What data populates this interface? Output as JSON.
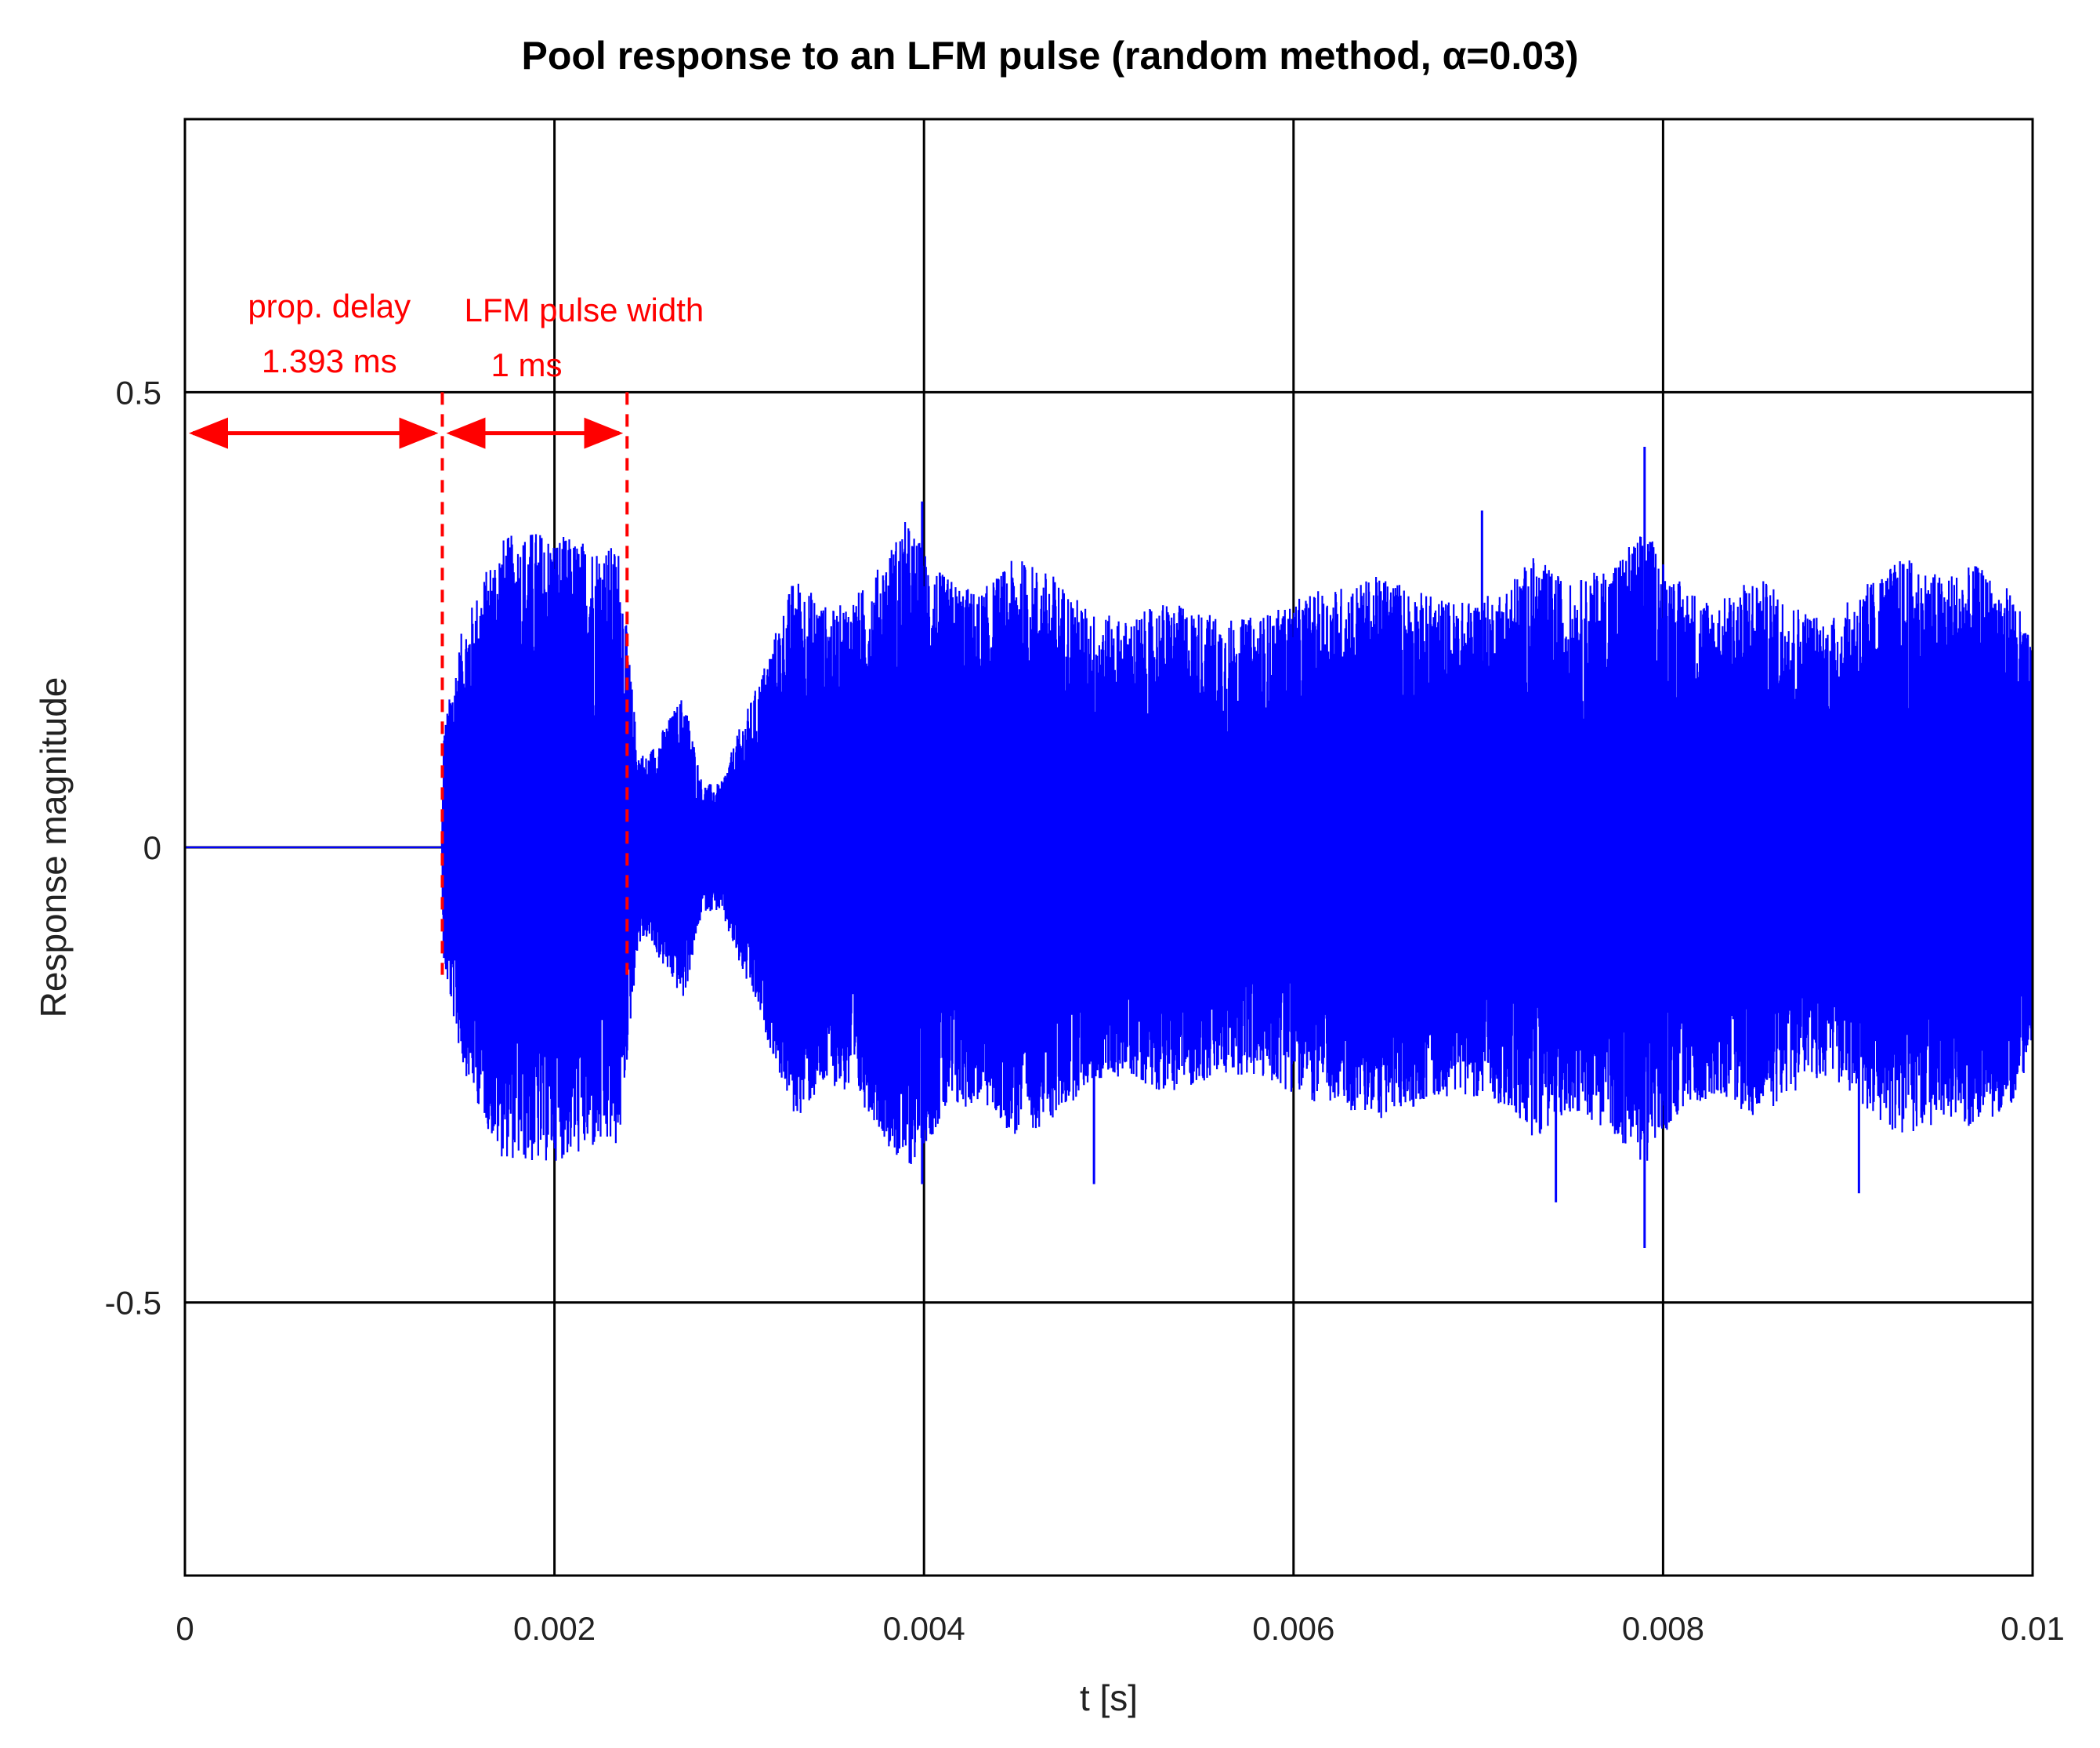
{
  "chart_data": {
    "type": "line",
    "title": "Pool response to an LFM pulse (random method,  α=0.03)",
    "xlabel": "t [s]",
    "ylabel": "Response magnitude",
    "xlim": [
      0,
      0.01
    ],
    "ylim": [
      -0.8,
      0.8
    ],
    "xticks": [
      0,
      0.002,
      0.004,
      0.006,
      0.008,
      0.01
    ],
    "xtick_labels": [
      "0",
      "0.002",
      "0.004",
      "0.006",
      "0.008",
      "0.01"
    ],
    "yticks": [
      -0.5,
      0,
      0.5
    ],
    "ytick_labels": [
      "-0.5",
      "0",
      "0.5"
    ],
    "grid": true,
    "series": [
      {
        "color": "#0000ff",
        "envelope": {
          "x": [
            0,
            0.00139,
            0.0014,
            0.0015,
            0.0017,
            0.0019,
            0.0021,
            0.00235,
            0.00245,
            0.0025,
            0.0027,
            0.0028,
            0.0029,
            0.003,
            0.0031,
            0.0033,
            0.0035,
            0.0037,
            0.0039,
            0.0041,
            0.0043,
            0.0045,
            0.0047,
            0.0049,
            0.0051,
            0.0053,
            0.0055,
            0.0057,
            0.0059,
            0.0061,
            0.0063,
            0.0065,
            0.0067,
            0.0069,
            0.0071,
            0.0073,
            0.0075,
            0.0077,
            0.0079,
            0.0081,
            0.0083,
            0.0085,
            0.0087,
            0.0089,
            0.0091,
            0.0093,
            0.0095,
            0.0097,
            0.0099,
            0.01
          ],
          "amplitude": [
            0,
            0,
            0.13,
            0.24,
            0.34,
            0.35,
            0.34,
            0.33,
            0.11,
            0.1,
            0.17,
            0.07,
            0.07,
            0.13,
            0.18,
            0.3,
            0.26,
            0.29,
            0.36,
            0.3,
            0.28,
            0.32,
            0.3,
            0.26,
            0.25,
            0.27,
            0.26,
            0.25,
            0.26,
            0.28,
            0.29,
            0.3,
            0.28,
            0.27,
            0.28,
            0.32,
            0.29,
            0.31,
            0.35,
            0.29,
            0.27,
            0.3,
            0.27,
            0.25,
            0.29,
            0.32,
            0.3,
            0.31,
            0.28,
            0.22
          ]
        },
        "peak_spikes": [
          {
            "x": 0.00399,
            "y": 0.38
          },
          {
            "x": 0.00399,
            "y": -0.37
          },
          {
            "x": 0.00492,
            "y": -0.37
          },
          {
            "x": 0.00702,
            "y": 0.37
          },
          {
            "x": 0.00742,
            "y": -0.39
          },
          {
            "x": 0.0079,
            "y": 0.44
          },
          {
            "x": 0.0079,
            "y": -0.44
          },
          {
            "x": 0.00906,
            "y": -0.38
          }
        ]
      }
    ],
    "annotations": [
      {
        "lines": [
          "prop. delay",
          "1.393 ms"
        ],
        "x_start": 0,
        "x_end": 0.001393
      },
      {
        "lines": [
          "LFM pulse width",
          "1 ms"
        ],
        "x_start": 0.001393,
        "x_end": 0.002393
      }
    ],
    "markers": [
      {
        "x": 0.001393,
        "y_range": [
          -0.14,
          0.5
        ],
        "style": "dashed",
        "color": "#ff0000"
      },
      {
        "x": 0.002393,
        "y_range": [
          -0.14,
          0.5
        ],
        "style": "dashed",
        "color": "#ff0000"
      }
    ],
    "annotation_color": "#ff0000"
  }
}
